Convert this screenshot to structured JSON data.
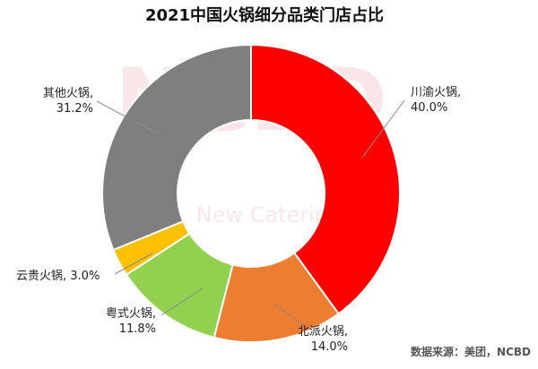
{
  "chart_data": {
    "type": "pie",
    "variant": "donut",
    "title": "2021中国火锅细分品类门店占比",
    "slices": [
      {
        "label": "川渝火锅",
        "value": 40.0,
        "value_text": "40.0%",
        "color": "#ff0000"
      },
      {
        "label": "北派火锅",
        "value": 14.0,
        "value_text": "14.0%",
        "color": "#ed7d31"
      },
      {
        "label": "粤式火锅",
        "value": 11.8,
        "value_text": "11.8%",
        "color": "#92d050"
      },
      {
        "label": "云贵火锅",
        "value": 3.0,
        "value_text": "3.0%",
        "color": "#ffc000"
      },
      {
        "label": "其他火锅",
        "value": 31.2,
        "value_text": "31.2%",
        "color": "#7f7f7f"
      }
    ],
    "source": "数据来源：美团，NCBD"
  },
  "watermark": {
    "logo": "NCBD",
    "text": "New Catering"
  }
}
